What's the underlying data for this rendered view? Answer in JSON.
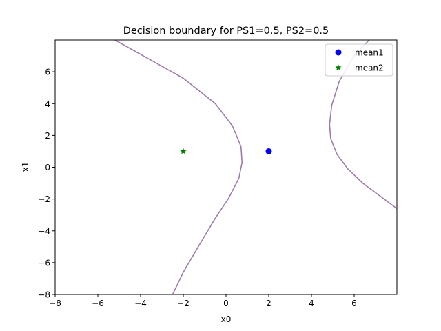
{
  "chart_data": {
    "type": "scatter",
    "title": "Decision boundary for PS1=0.5, PS2=0.5",
    "xlabel": "x0",
    "ylabel": "x1",
    "xlim": [
      -8,
      8
    ],
    "ylim": [
      -8,
      8
    ],
    "x_ticks": [
      -8,
      -6,
      -4,
      -2,
      0,
      2,
      4,
      6
    ],
    "y_ticks": [
      -8,
      -6,
      -4,
      -2,
      0,
      2,
      4,
      6
    ],
    "x_tick_labels": [
      "−8",
      "−6",
      "−4",
      "−2",
      "0",
      "2",
      "4",
      "6"
    ],
    "y_tick_labels": [
      "−8",
      "−6",
      "−4",
      "−2",
      "0",
      "2",
      "4",
      "6"
    ],
    "grid": false,
    "legend_position": "top-right",
    "series": [
      {
        "name": "mean1",
        "marker": "circle",
        "color": "#0000ff",
        "points": [
          [
            2,
            1
          ]
        ]
      },
      {
        "name": "mean2",
        "marker": "star",
        "color": "#008000",
        "points": [
          [
            -2,
            1
          ]
        ]
      }
    ],
    "boundary": {
      "color": "#9e7bab",
      "curves": [
        [
          [
            -5.2,
            8
          ],
          [
            -4,
            7.1
          ],
          [
            -2,
            5.6
          ],
          [
            -0.5,
            4
          ],
          [
            0.3,
            2.6
          ],
          [
            0.7,
            1.3
          ],
          [
            0.75,
            0.3
          ],
          [
            0.6,
            -0.7
          ],
          [
            0.1,
            -2
          ],
          [
            -0.5,
            -3.2
          ],
          [
            -1.3,
            -5
          ],
          [
            -2,
            -6.6
          ],
          [
            -2.5,
            -8
          ]
        ],
        [
          [
            6.7,
            8
          ],
          [
            6,
            7
          ],
          [
            5.3,
            5.4
          ],
          [
            4.95,
            3.9
          ],
          [
            4.85,
            2.7
          ],
          [
            4.9,
            1.8
          ],
          [
            5.2,
            0.8
          ],
          [
            5.7,
            -0.1
          ],
          [
            6.4,
            -1
          ],
          [
            7.2,
            -1.8
          ],
          [
            8,
            -2.6
          ]
        ]
      ]
    }
  }
}
